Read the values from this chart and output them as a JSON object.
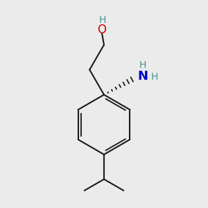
{
  "bg_color": "#ebebeb",
  "bond_color": "#1a1a1a",
  "O_color": "#cc0000",
  "N_color": "#0000cc",
  "H_teal_color": "#4a9090",
  "line_width": 1.5,
  "fig_size": [
    3.0,
    3.0
  ],
  "dpi": 100,
  "xlim": [
    0,
    10
  ],
  "ylim": [
    0,
    10
  ]
}
